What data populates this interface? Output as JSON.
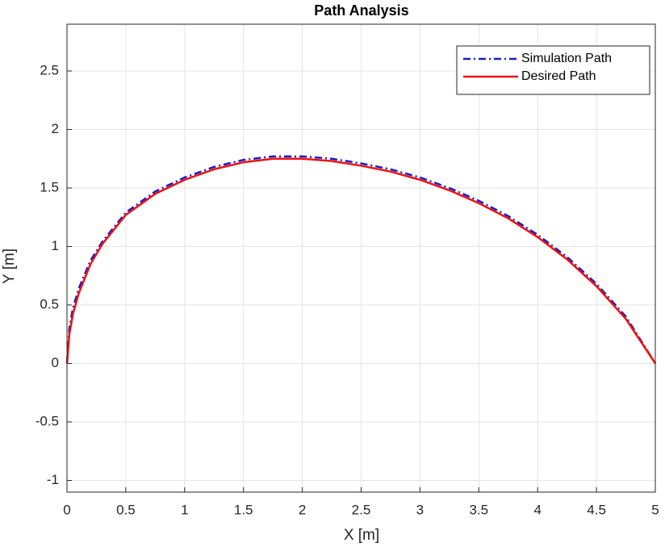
{
  "chart_data": {
    "type": "line",
    "title": "Path Analysis",
    "x_label": "X [m]",
    "y_label": "Y [m]",
    "x": [
      0,
      0.02,
      0.05,
      0.1,
      0.2,
      0.3,
      0.5,
      0.75,
      1,
      1.25,
      1.5,
      1.75,
      2,
      2.25,
      2.5,
      2.75,
      3,
      3.25,
      3.5,
      3.75,
      4,
      4.25,
      4.5,
      4.75,
      5
    ],
    "series": [
      {
        "name": "Simulation Path",
        "color": "#1a1acc",
        "style": "dash-dot",
        "values": [
          0,
          0.3,
          0.47,
          0.64,
          0.88,
          1.04,
          1.29,
          1.47,
          1.59,
          1.68,
          1.74,
          1.77,
          1.77,
          1.75,
          1.71,
          1.66,
          1.59,
          1.5,
          1.39,
          1.26,
          1.1,
          0.91,
          0.68,
          0.4,
          0
        ]
      },
      {
        "name": "Desired Path",
        "color": "#ee1111",
        "style": "solid",
        "values": [
          0,
          0.25,
          0.42,
          0.6,
          0.85,
          1.02,
          1.27,
          1.45,
          1.57,
          1.66,
          1.72,
          1.75,
          1.75,
          1.73,
          1.69,
          1.64,
          1.57,
          1.48,
          1.37,
          1.24,
          1.08,
          0.89,
          0.66,
          0.38,
          0
        ]
      }
    ],
    "xlim": [
      0,
      5
    ],
    "xticks": [
      0,
      0.5,
      1,
      1.5,
      2,
      2.5,
      3,
      3.5,
      4,
      4.5,
      5
    ],
    "ylim": [
      -1.1,
      2.9
    ],
    "yticks": [
      -1,
      -0.5,
      0,
      0.5,
      1,
      1.5,
      2,
      2.5
    ],
    "grid": true,
    "legend": "top-right"
  }
}
